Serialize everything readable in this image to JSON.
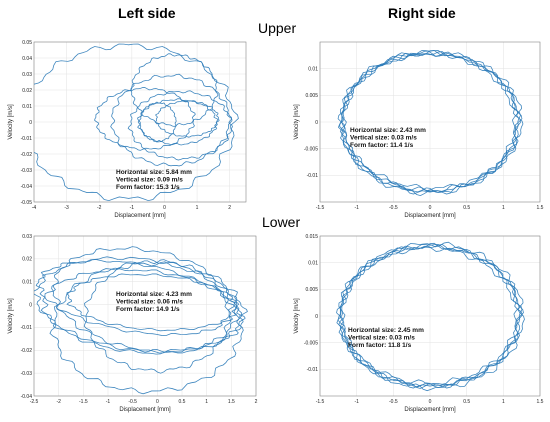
{
  "headings": {
    "left": "Left side",
    "right": "Right side",
    "upper": "Upper",
    "lower": "Lower"
  },
  "chart_data": [
    {
      "type": "line",
      "panel": "upper-left",
      "xlabel": "Displacement [mm]",
      "ylabel": "Velocity [m/s]",
      "xlim": [
        -4,
        2.5
      ],
      "ylim": [
        -0.05,
        0.05
      ],
      "xticks": [
        -4,
        -3,
        -2,
        -1,
        0,
        1,
        2
      ],
      "yticks": [
        -0.05,
        -0.04,
        -0.03,
        -0.02,
        -0.01,
        0,
        0.01,
        0.02,
        0.03,
        0.04,
        0.05
      ],
      "xtick_labels": [
        "-4",
        "-3",
        "-2",
        "-1",
        "0",
        "1",
        "2"
      ],
      "ytick_labels": [
        "-0.05",
        "-0.04",
        "-0.03",
        "-0.02",
        "-0.01",
        "0",
        "0.01",
        "0.02",
        "0.03",
        "0.04",
        "0.05"
      ],
      "grid": true,
      "line_color": "#2a7ab8",
      "annotations": [
        "Horizontal size: 5.84 mm",
        "Vertical size: 0.09 m/s",
        "Form factor: 15.3 1/s"
      ],
      "loops": [
        {
          "cx": -1.1,
          "cy": 0.0,
          "rx": 3.25,
          "ry": 0.048,
          "tilt": 0.0
        },
        {
          "cx": 0.2,
          "cy": 0.001,
          "rx": 1.8,
          "ry": 0.028,
          "tilt": 0.0
        },
        {
          "cx": 0.5,
          "cy": -0.002,
          "rx": 1.55,
          "ry": 0.021,
          "tilt": 0.0
        },
        {
          "cx": -0.6,
          "cy": 0.002,
          "rx": 1.5,
          "ry": 0.019,
          "tilt": 0.0
        },
        {
          "cx": 0.4,
          "cy": 0.0,
          "rx": 1.2,
          "ry": 0.014,
          "tilt": 0.0
        },
        {
          "cx": 0.7,
          "cy": 0.002,
          "rx": 0.95,
          "ry": 0.011,
          "tilt": 0.0
        },
        {
          "cx": 0.3,
          "cy": 0.02,
          "rx": 1.3,
          "ry": 0.022,
          "tilt": 0.0
        },
        {
          "cx": -0.2,
          "cy": 0.0,
          "rx": 0.55,
          "ry": 0.012,
          "tilt": 0.0
        }
      ]
    },
    {
      "type": "line",
      "panel": "upper-right",
      "xlabel": "Displacement [mm]",
      "ylabel": "Velocity [m/s]",
      "xlim": [
        -1.5,
        1.5
      ],
      "ylim": [
        -0.015,
        0.015
      ],
      "xticks": [
        -1.5,
        -1,
        -0.5,
        0,
        0.5,
        1,
        1.5
      ],
      "yticks": [
        -0.01,
        -0.005,
        0,
        0.005,
        0.01
      ],
      "xtick_labels": [
        "-1.5",
        "-1",
        "-0.5",
        "0",
        "0.5",
        "1",
        "1.5"
      ],
      "ytick_labels": [
        "-0.01",
        "-0.005",
        "0",
        "0.005",
        "0.01"
      ],
      "grid": true,
      "line_color": "#2a7ab8",
      "annotations": [
        "Horizontal size: 2.43 mm",
        "Vertical size: 0.03 m/s",
        "Form factor: 11.4 1/s"
      ],
      "loops": [
        {
          "cx": 0.0,
          "cy": 0.0,
          "rx": 1.21,
          "ry": 0.0132,
          "tilt": 0.0
        },
        {
          "cx": 0.0,
          "cy": 0.0,
          "rx": 1.19,
          "ry": 0.0128,
          "tilt": 0.0
        },
        {
          "cx": 0.02,
          "cy": 0.0002,
          "rx": 1.22,
          "ry": 0.0126,
          "tilt": 0.0
        },
        {
          "cx": -0.02,
          "cy": -0.0002,
          "rx": 1.18,
          "ry": 0.0131,
          "tilt": 0.0
        },
        {
          "cx": 0.0,
          "cy": 0.0,
          "rx": 1.2,
          "ry": 0.0129,
          "tilt": 0.0
        }
      ]
    },
    {
      "type": "line",
      "panel": "lower-left",
      "xlabel": "Displacement [mm]",
      "ylabel": "Velocity [m/s]",
      "xlim": [
        -2.5,
        2
      ],
      "ylim": [
        -0.04,
        0.03
      ],
      "xticks": [
        -2.5,
        -2,
        -1.5,
        -1,
        -0.5,
        0,
        0.5,
        1,
        1.5,
        2
      ],
      "yticks": [
        -0.04,
        -0.03,
        -0.02,
        -0.01,
        0,
        0.01,
        0.02,
        0.03
      ],
      "xtick_labels": [
        "-2.5",
        "-2",
        "-1.5",
        "-1",
        "-0.5",
        "0",
        "0.5",
        "1",
        "1.5",
        "2"
      ],
      "ytick_labels": [
        "-0.04",
        "-0.03",
        "-0.02",
        "-0.01",
        "0",
        "0.01",
        "0.02",
        "0.03"
      ],
      "grid": true,
      "line_color": "#2a7ab8",
      "annotations": [
        "Horizontal size: 4.23 mm",
        "Vertical size: 0.06 m/s",
        "Form factor: 14.9 1/s"
      ],
      "loops": [
        {
          "cx": -0.35,
          "cy": 0.0,
          "rx": 2.1,
          "ry": 0.02,
          "tilt": -0.004
        },
        {
          "cx": -0.3,
          "cy": -0.003,
          "rx": 2.0,
          "ry": 0.018,
          "tilt": -0.003
        },
        {
          "cx": -0.2,
          "cy": -0.01,
          "rx": 1.9,
          "ry": 0.028,
          "tilt": 0.0
        },
        {
          "cx": -0.45,
          "cy": 0.003,
          "rx": 1.95,
          "ry": 0.015,
          "tilt": -0.006
        },
        {
          "cx": -0.1,
          "cy": 0.001,
          "rx": 1.7,
          "ry": 0.012,
          "tilt": -0.002
        },
        {
          "cx": 0.0,
          "cy": -0.005,
          "rx": 1.45,
          "ry": 0.024,
          "tilt": 0.0
        },
        {
          "cx": -0.25,
          "cy": 0.002,
          "rx": 1.85,
          "ry": 0.022,
          "tilt": -0.005
        }
      ]
    },
    {
      "type": "line",
      "panel": "lower-right",
      "xlabel": "Displacement [mm]",
      "ylabel": "Velocity [m/s]",
      "xlim": [
        -1.5,
        1.5
      ],
      "ylim": [
        -0.015,
        0.015
      ],
      "xticks": [
        -1.5,
        -1,
        -0.5,
        0,
        0.5,
        1,
        1.5
      ],
      "yticks": [
        -0.01,
        -0.005,
        0,
        0.005,
        0.01,
        0.015
      ],
      "xtick_labels": [
        "-1.5",
        "-1",
        "-0.5",
        "0",
        "0.5",
        "1",
        "1.5"
      ],
      "ytick_labels": [
        "-0.01",
        "-0.005",
        "0",
        "0.005",
        "0.01",
        "0.015"
      ],
      "grid": true,
      "line_color": "#2a7ab8",
      "annotations": [
        "Horizontal size: 2.45 mm",
        "Vertical size: 0.03 m/s",
        "Form factor: 11.8 1/s"
      ],
      "loops": [
        {
          "cx": 0.0,
          "cy": 0.0,
          "rx": 1.23,
          "ry": 0.0132,
          "tilt": 0.0
        },
        {
          "cx": 0.0,
          "cy": 0.0002,
          "rx": 1.21,
          "ry": 0.0128,
          "tilt": 0.0
        },
        {
          "cx": 0.02,
          "cy": 0.0,
          "rx": 1.24,
          "ry": 0.0135,
          "tilt": 0.0
        },
        {
          "cx": -0.02,
          "cy": -0.0002,
          "rx": 1.2,
          "ry": 0.0129,
          "tilt": 0.0
        },
        {
          "cx": 0.0,
          "cy": 0.0,
          "rx": 1.22,
          "ry": 0.0131,
          "tilt": 0.0
        }
      ]
    }
  ]
}
